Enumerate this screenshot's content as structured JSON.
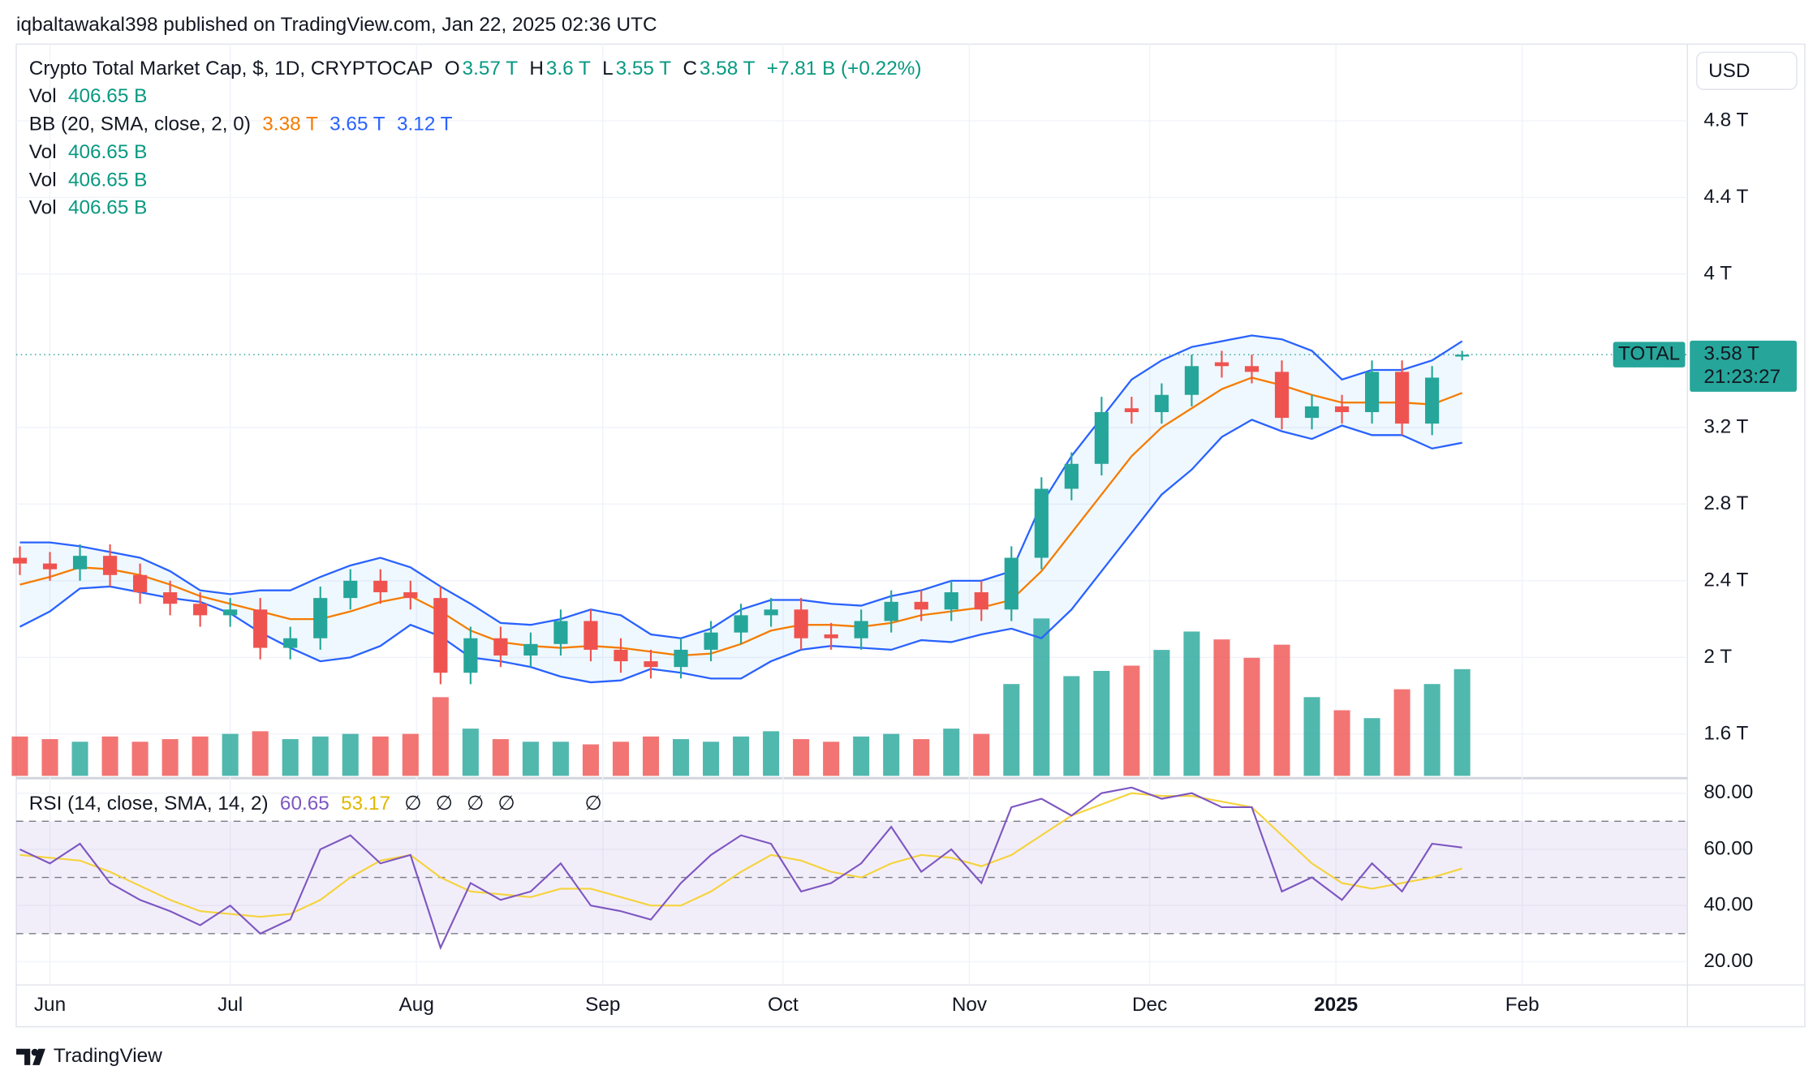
{
  "header": {
    "publisher": "iqbaltawakal398 published on TradingView.com, Jan 22, 2025 02:36 UTC"
  },
  "chart_data": {
    "type": "candlestick",
    "title": "Crypto Total Market Cap, $, 1D, CRYPTOCAP",
    "ohlc_legend": [
      {
        "key": "O",
        "text": "3.57 T"
      },
      {
        "key": "H",
        "text": "3.6 T"
      },
      {
        "key": "L",
        "text": "3.55 T"
      },
      {
        "key": "C",
        "text": "3.58 T"
      }
    ],
    "change": "+7.81 B (+0.22%)",
    "vol_legends": [
      {
        "name": "Vol",
        "text": "406.65 B"
      },
      {
        "name": "Vol",
        "text": "406.65 B"
      },
      {
        "name": "Vol",
        "text": "406.65 B"
      },
      {
        "name": "Vol",
        "text": "406.65 B"
      }
    ],
    "bb_legend": {
      "name": "BB (20, SMA, close, 2, 0)",
      "values": [
        "3.38 T",
        "3.65 T",
        "3.12 T"
      ]
    },
    "currency": "USD",
    "last_label": {
      "name": "TOTAL",
      "text": "3.58 T",
      "countdown": "21:23:27"
    },
    "up_color": "#26a69a",
    "down_color": "#ef5350",
    "x": [
      -5,
      0,
      5,
      10,
      15,
      20,
      25,
      30,
      35,
      40,
      45,
      50,
      55,
      60,
      65,
      70,
      75,
      80,
      85,
      90,
      95,
      100,
      105,
      110,
      115,
      120,
      125,
      130,
      135,
      140,
      145,
      150,
      155,
      160,
      165,
      170,
      175,
      180,
      185,
      190,
      195,
      200,
      205,
      210,
      215,
      220,
      225,
      230,
      235
    ],
    "xlim": [
      -5.6,
      272.5
    ],
    "xticks": [
      {
        "value": 0,
        "label": "Jun"
      },
      {
        "value": 30,
        "label": "Jul"
      },
      {
        "value": 61,
        "label": "Aug"
      },
      {
        "value": 92,
        "label": "Sep"
      },
      {
        "value": 122,
        "label": "Oct"
      },
      {
        "value": 153,
        "label": "Nov"
      },
      {
        "value": 183,
        "label": "Dec"
      },
      {
        "value": 214,
        "label": "2025"
      },
      {
        "value": 245,
        "label": "Feb"
      }
    ],
    "bold_xtick": "2025",
    "open": [
      2.52,
      2.49,
      2.46,
      2.53,
      2.43,
      2.34,
      2.28,
      2.22,
      2.25,
      2.05,
      2.1,
      2.31,
      2.4,
      2.34,
      2.31,
      1.92,
      2.1,
      2.01,
      2.07,
      2.19,
      2.04,
      1.98,
      1.95,
      2.04,
      2.13,
      2.22,
      2.25,
      2.12,
      2.1,
      2.19,
      2.29,
      2.25,
      2.34,
      2.25,
      2.52,
      2.88,
      3.01,
      3.3,
      3.28,
      3.37,
      3.54,
      3.52,
      3.49,
      3.25,
      3.31,
      3.28,
      3.49,
      3.22,
      3.57
    ],
    "high": [
      2.58,
      2.55,
      2.59,
      2.59,
      2.49,
      2.4,
      2.34,
      2.31,
      2.31,
      2.16,
      2.37,
      2.46,
      2.46,
      2.4,
      2.37,
      2.16,
      2.16,
      2.13,
      2.25,
      2.25,
      2.1,
      2.04,
      2.1,
      2.19,
      2.28,
      2.31,
      2.31,
      2.18,
      2.25,
      2.35,
      2.35,
      2.4,
      2.4,
      2.58,
      2.94,
      3.07,
      3.36,
      3.36,
      3.43,
      3.58,
      3.6,
      3.58,
      3.55,
      3.37,
      3.37,
      3.55,
      3.55,
      3.52,
      3.6
    ],
    "low": [
      2.43,
      2.4,
      2.4,
      2.37,
      2.28,
      2.22,
      2.16,
      2.16,
      1.99,
      1.99,
      2.04,
      2.25,
      2.28,
      2.25,
      1.86,
      1.86,
      1.95,
      1.95,
      2.01,
      1.98,
      1.92,
      1.89,
      1.89,
      1.98,
      2.07,
      2.16,
      2.04,
      2.04,
      2.04,
      2.13,
      2.19,
      2.19,
      2.19,
      2.19,
      2.46,
      2.82,
      2.95,
      3.22,
      3.22,
      3.31,
      3.46,
      3.43,
      3.19,
      3.19,
      3.22,
      3.22,
      3.16,
      3.16,
      3.55
    ],
    "close": [
      2.49,
      2.46,
      2.53,
      2.43,
      2.34,
      2.28,
      2.22,
      2.25,
      2.05,
      2.1,
      2.31,
      2.4,
      2.34,
      2.31,
      1.92,
      2.1,
      2.01,
      2.07,
      2.19,
      2.04,
      1.98,
      1.95,
      2.04,
      2.13,
      2.22,
      2.25,
      2.1,
      2.1,
      2.19,
      2.29,
      2.25,
      2.34,
      2.25,
      2.52,
      2.88,
      3.01,
      3.28,
      3.28,
      3.37,
      3.52,
      3.52,
      3.49,
      3.25,
      3.31,
      3.28,
      3.49,
      3.22,
      3.46,
      3.58
    ],
    "ylim": [
      1.382,
      5.188
    ],
    "yticks": [
      {
        "value": 1.6,
        "label": "1.6 T"
      },
      {
        "value": 2,
        "label": "2 T"
      },
      {
        "value": 2.4,
        "label": "2.4 T"
      },
      {
        "value": 2.8,
        "label": "2.8 T"
      },
      {
        "value": 3.2,
        "label": "3.2 T"
      },
      {
        "value": 4,
        "label": "4 T"
      },
      {
        "value": 4.4,
        "label": "4.4 T"
      },
      {
        "value": 4.8,
        "label": "4.8 T"
      }
    ],
    "volume": [
      150,
      140,
      130,
      150,
      130,
      140,
      150,
      160,
      170,
      140,
      150,
      160,
      150,
      160,
      300,
      180,
      140,
      130,
      130,
      120,
      130,
      150,
      140,
      130,
      150,
      170,
      140,
      130,
      150,
      160,
      140,
      180,
      160,
      350,
      600,
      380,
      400,
      420,
      480,
      550,
      520,
      450,
      500,
      300,
      250,
      220,
      330,
      350,
      406.65
    ],
    "volume_lim": [
      0,
      2780
    ],
    "bollinger": {
      "upper_color": "#2962ff",
      "basis_color": "#f57c00",
      "fill_color": "#2196f3",
      "upper": [
        2.6,
        2.6,
        2.58,
        2.55,
        2.52,
        2.45,
        2.35,
        2.33,
        2.35,
        2.35,
        2.42,
        2.48,
        2.52,
        2.47,
        2.37,
        2.28,
        2.18,
        2.17,
        2.2,
        2.25,
        2.22,
        2.12,
        2.1,
        2.15,
        2.25,
        2.3,
        2.3,
        2.28,
        2.27,
        2.32,
        2.35,
        2.4,
        2.4,
        2.45,
        2.8,
        3.05,
        3.25,
        3.45,
        3.55,
        3.62,
        3.65,
        3.68,
        3.66,
        3.6,
        3.45,
        3.5,
        3.5,
        3.55,
        3.65
      ],
      "basis": [
        2.38,
        2.42,
        2.47,
        2.46,
        2.43,
        2.38,
        2.32,
        2.28,
        2.24,
        2.2,
        2.2,
        2.24,
        2.29,
        2.32,
        2.24,
        2.14,
        2.08,
        2.06,
        2.05,
        2.06,
        2.05,
        2.03,
        2.01,
        2.02,
        2.07,
        2.14,
        2.17,
        2.17,
        2.16,
        2.18,
        2.22,
        2.24,
        2.26,
        2.3,
        2.45,
        2.65,
        2.85,
        3.05,
        3.2,
        3.3,
        3.4,
        3.46,
        3.42,
        3.37,
        3.33,
        3.33,
        3.33,
        3.32,
        3.38
      ],
      "lower": [
        2.16,
        2.24,
        2.36,
        2.37,
        2.34,
        2.31,
        2.29,
        2.23,
        2.13,
        2.05,
        1.98,
        2.0,
        2.06,
        2.17,
        2.11,
        2.0,
        1.98,
        1.95,
        1.9,
        1.87,
        1.88,
        1.94,
        1.92,
        1.89,
        1.89,
        1.98,
        2.04,
        2.06,
        2.05,
        2.04,
        2.09,
        2.08,
        2.12,
        2.15,
        2.1,
        2.25,
        2.45,
        2.65,
        2.85,
        2.98,
        3.15,
        3.24,
        3.18,
        3.14,
        3.21,
        3.16,
        3.16,
        3.09,
        3.12
      ]
    },
    "rsi": {
      "title": "RSI (14, close, SMA, 14, 2)",
      "value_text": "60.65",
      "ma_text": "53.17",
      "empty_markers": [
        "∅",
        "∅",
        "∅",
        "∅",
        "∅"
      ],
      "color": "#7e57c2",
      "ma_color": "#f5d33d",
      "values": [
        60,
        55,
        62,
        48,
        42,
        38,
        33,
        40,
        30,
        35,
        60,
        65,
        55,
        58,
        25,
        48,
        42,
        45,
        55,
        40,
        38,
        35,
        48,
        58,
        65,
        62,
        45,
        48,
        55,
        68,
        52,
        60,
        48,
        75,
        78,
        72,
        80,
        82,
        78,
        80,
        75,
        75,
        45,
        50,
        42,
        55,
        45,
        62,
        60.65
      ],
      "ma": [
        58,
        57,
        56,
        52,
        47,
        42,
        38,
        37,
        36,
        37,
        42,
        50,
        56,
        58,
        50,
        45,
        44,
        43,
        46,
        46,
        43,
        40,
        40,
        45,
        52,
        58,
        56,
        52,
        50,
        55,
        58,
        57,
        54,
        58,
        65,
        72,
        76,
        80,
        79,
        79,
        77,
        75,
        65,
        55,
        48,
        46,
        48,
        50,
        53.17
      ],
      "ylim": [
        11.75,
        84.5
      ],
      "yticks": [
        {
          "value": 20,
          "label": "20.00"
        },
        {
          "value": 40,
          "label": "40.00"
        },
        {
          "value": 60,
          "label": "60.00"
        },
        {
          "value": 80,
          "label": "80.00"
        }
      ],
      "bands": [
        70,
        50,
        30
      ]
    }
  },
  "footer": {
    "brand": "TradingView"
  }
}
